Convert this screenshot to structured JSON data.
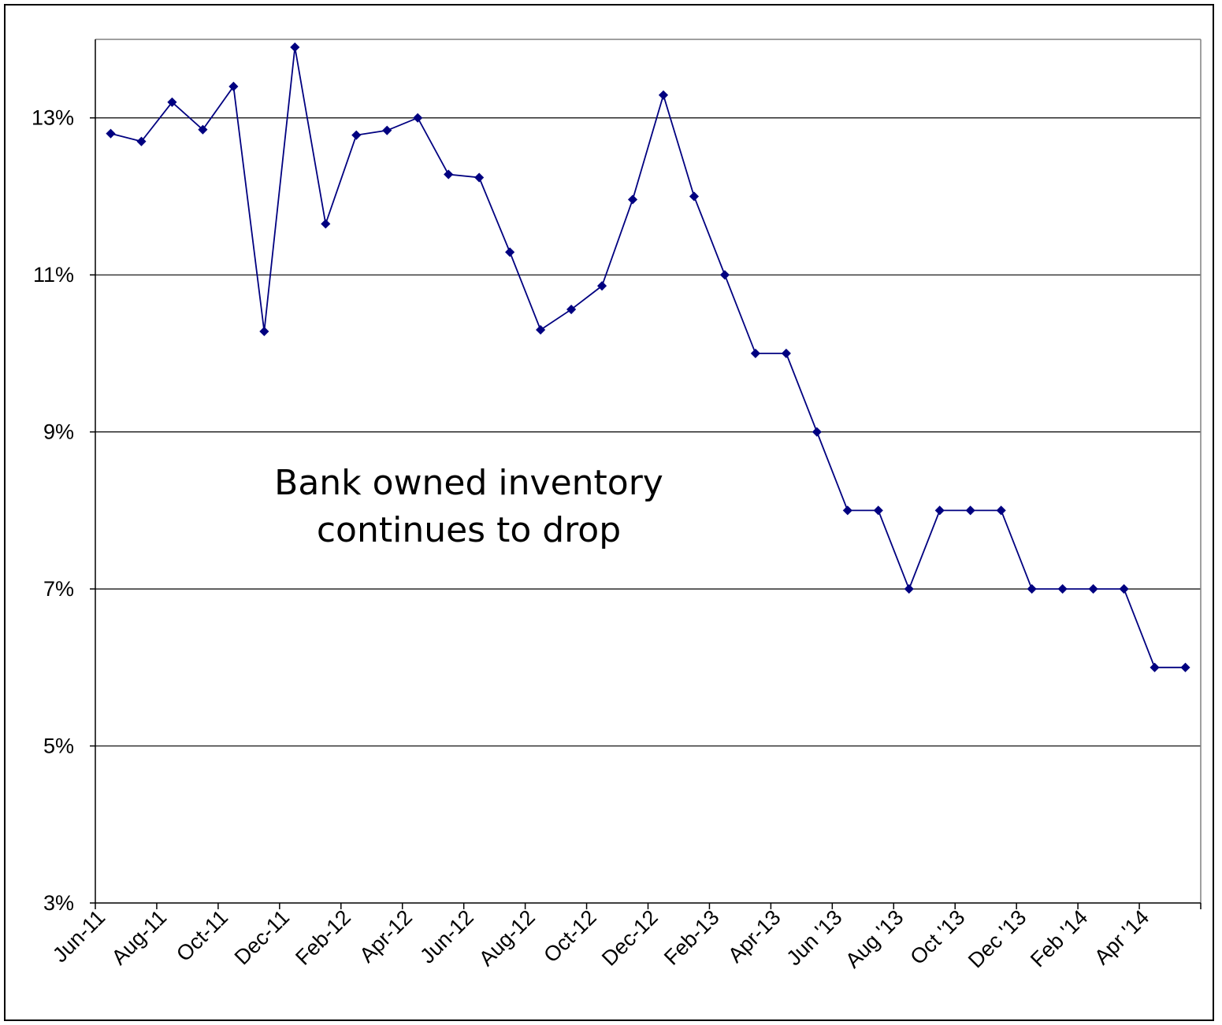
{
  "chart_data": {
    "type": "line",
    "title": "",
    "xlabel": "",
    "ylabel": "",
    "ylim": [
      3,
      14
    ],
    "yticks": [
      3,
      5,
      7,
      9,
      11,
      13
    ],
    "ytick_labels": [
      "3%",
      "5%",
      "7%",
      "9%",
      "11%",
      "13%"
    ],
    "grid": true,
    "legend": "none",
    "categories": [
      "Jun-11",
      "Jul-11",
      "Aug-11",
      "Sep-11",
      "Oct-11",
      "Nov-11",
      "Dec-11",
      "Jan-12",
      "Feb-12",
      "Mar-12",
      "Apr-12",
      "May-12",
      "Jun-12",
      "Jul-12",
      "Aug-12",
      "Sep-12",
      "Oct-12",
      "Nov-12",
      "Dec-12",
      "Jan-13",
      "Feb-13",
      "Mar-13",
      "Apr-13",
      "May-13",
      "Jun '13",
      "Jul '13",
      "Aug '13",
      "Sep '13",
      "Oct '13",
      "Nov '13",
      "Dec '13",
      "Jan '14",
      "Feb '14",
      "Mar '14",
      "Apr '14",
      "May '14"
    ],
    "xtick_labels": [
      "Jun-11",
      "Aug-11",
      "Oct-11",
      "Dec-11",
      "Feb-12",
      "Apr-12",
      "Jun-12",
      "Aug-12",
      "Oct-12",
      "Dec-12",
      "Feb-13",
      "Apr-13",
      "Jun '13",
      "Aug '13",
      "Oct '13",
      "Dec '13",
      "Feb '14",
      "Apr '14"
    ],
    "series": [
      {
        "color": "#000080",
        "marker": "diamond",
        "values": [
          12.8,
          12.7,
          13.2,
          12.85,
          13.4,
          10.28,
          13.9,
          11.65,
          12.78,
          12.84,
          13.0,
          12.28,
          12.24,
          11.29,
          10.3,
          10.56,
          10.86,
          11.96,
          13.29,
          12.0,
          11.0,
          10.0,
          10.0,
          9.0,
          8.0,
          8.0,
          7.0,
          8.0,
          8.0,
          8.0,
          7.0,
          7.0,
          7.0,
          7.0,
          6.0,
          6.0
        ]
      }
    ],
    "annotation": {
      "lines": [
        "Bank owned inventory",
        "continues to drop"
      ]
    }
  }
}
